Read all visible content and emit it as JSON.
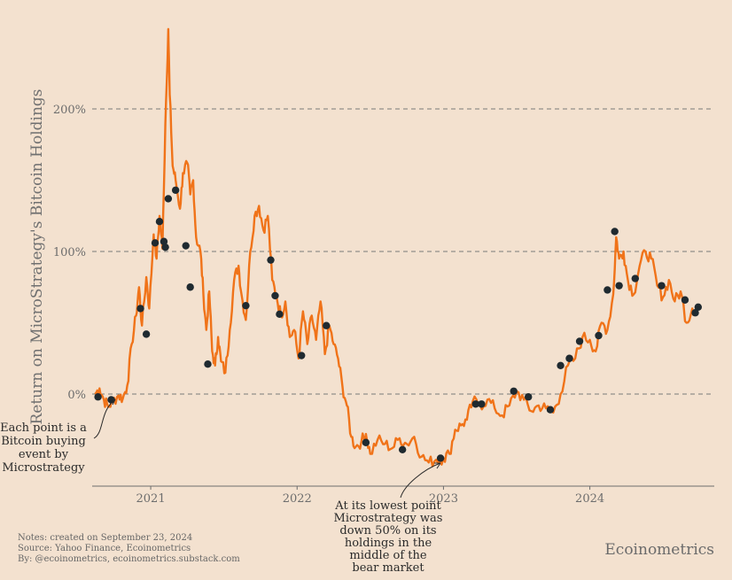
{
  "chart_data": {
    "type": "line",
    "title": "",
    "xlabel": "",
    "ylabel": "Return on MicroStrategy's Bitcoin Holdings",
    "x_ticks": [
      "2021",
      "2022",
      "2023",
      "2024"
    ],
    "y_ticks": [
      "0%",
      "100%",
      "200%"
    ],
    "y_tick_values": [
      0,
      100,
      200
    ],
    "xlim": [
      2020.6,
      2024.85
    ],
    "ylim": [
      -65,
      258
    ],
    "grid": "horizontal dashed at tick values",
    "line_color": "#f07319",
    "marker_color": "#1f2a30",
    "series": [
      {
        "values": [
          [
            2020.62,
            0
          ],
          [
            2020.65,
            4
          ],
          [
            2020.68,
            -4
          ],
          [
            2020.71,
            -9
          ],
          [
            2020.74,
            -5
          ],
          [
            2020.78,
            -1
          ],
          [
            2020.81,
            -3
          ],
          [
            2020.84,
            6
          ],
          [
            2020.87,
            35
          ],
          [
            2020.9,
            55
          ],
          [
            2020.92,
            75
          ],
          [
            2020.94,
            48
          ],
          [
            2020.97,
            82
          ],
          [
            2020.99,
            60
          ],
          [
            2021.02,
            112
          ],
          [
            2021.04,
            95
          ],
          [
            2021.06,
            125
          ],
          [
            2021.08,
            102
          ],
          [
            2021.1,
            190
          ],
          [
            2021.12,
            256
          ],
          [
            2021.13,
            210
          ],
          [
            2021.15,
            160
          ],
          [
            2021.17,
            150
          ],
          [
            2021.2,
            130
          ],
          [
            2021.22,
            155
          ],
          [
            2021.25,
            162
          ],
          [
            2021.27,
            140
          ],
          [
            2021.29,
            150
          ],
          [
            2021.31,
            110
          ],
          [
            2021.34,
            100
          ],
          [
            2021.36,
            70
          ],
          [
            2021.38,
            45
          ],
          [
            2021.4,
            72
          ],
          [
            2021.42,
            30
          ],
          [
            2021.44,
            20
          ],
          [
            2021.46,
            40
          ],
          [
            2021.48,
            23
          ],
          [
            2021.51,
            15
          ],
          [
            2021.54,
            45
          ],
          [
            2021.57,
            80
          ],
          [
            2021.6,
            90
          ],
          [
            2021.62,
            70
          ],
          [
            2021.65,
            52
          ],
          [
            2021.68,
            100
          ],
          [
            2021.71,
            125
          ],
          [
            2021.74,
            132
          ],
          [
            2021.77,
            115
          ],
          [
            2021.8,
            125
          ],
          [
            2021.83,
            80
          ],
          [
            2021.86,
            68
          ],
          [
            2021.89,
            55
          ],
          [
            2021.92,
            65
          ],
          [
            2021.95,
            40
          ],
          [
            2021.98,
            45
          ],
          [
            2022.01,
            25
          ],
          [
            2022.04,
            58
          ],
          [
            2022.07,
            35
          ],
          [
            2022.1,
            55
          ],
          [
            2022.13,
            38
          ],
          [
            2022.16,
            65
          ],
          [
            2022.19,
            28
          ],
          [
            2022.22,
            48
          ],
          [
            2022.25,
            35
          ],
          [
            2022.28,
            25
          ],
          [
            2022.31,
            5
          ],
          [
            2022.34,
            -8
          ],
          [
            2022.37,
            -30
          ],
          [
            2022.4,
            -37
          ],
          [
            2022.44,
            -33
          ],
          [
            2022.47,
            -28
          ],
          [
            2022.5,
            -42
          ],
          [
            2022.55,
            -32
          ],
          [
            2022.6,
            -35
          ],
          [
            2022.65,
            -38
          ],
          [
            2022.7,
            -31
          ],
          [
            2022.75,
            -35
          ],
          [
            2022.8,
            -30
          ],
          [
            2022.85,
            -44
          ],
          [
            2022.9,
            -48
          ],
          [
            2022.95,
            -46
          ],
          [
            2023.0,
            -45
          ],
          [
            2023.04,
            -42
          ],
          [
            2023.08,
            -25
          ],
          [
            2023.12,
            -22
          ],
          [
            2023.16,
            -18
          ],
          [
            2023.2,
            -5
          ],
          [
            2023.25,
            -8
          ],
          [
            2023.3,
            -4
          ],
          [
            2023.35,
            -10
          ],
          [
            2023.4,
            -15
          ],
          [
            2023.45,
            -8
          ],
          [
            2023.5,
            2
          ],
          [
            2023.55,
            -4
          ],
          [
            2023.6,
            -12
          ],
          [
            2023.65,
            -8
          ],
          [
            2023.7,
            -10
          ],
          [
            2023.75,
            -13
          ],
          [
            2023.8,
            0
          ],
          [
            2023.85,
            20
          ],
          [
            2023.9,
            25
          ],
          [
            2023.95,
            40
          ],
          [
            2024.0,
            38
          ],
          [
            2024.04,
            30
          ],
          [
            2024.08,
            50
          ],
          [
            2024.12,
            45
          ],
          [
            2024.16,
            70
          ],
          [
            2024.18,
            110
          ],
          [
            2024.2,
            95
          ],
          [
            2024.23,
            100
          ],
          [
            2024.26,
            80
          ],
          [
            2024.3,
            70
          ],
          [
            2024.34,
            90
          ],
          [
            2024.38,
            100
          ],
          [
            2024.42,
            95
          ],
          [
            2024.46,
            76
          ],
          [
            2024.5,
            68
          ],
          [
            2024.54,
            80
          ],
          [
            2024.58,
            65
          ],
          [
            2024.62,
            72
          ],
          [
            2024.66,
            50
          ],
          [
            2024.7,
            60
          ],
          [
            2024.73,
            58
          ]
        ]
      }
    ],
    "purchase_points": [
      [
        2020.64,
        -2
      ],
      [
        2020.73,
        -4
      ],
      [
        2020.93,
        60
      ],
      [
        2020.97,
        42
      ],
      [
        2021.03,
        106
      ],
      [
        2021.06,
        121
      ],
      [
        2021.09,
        107
      ],
      [
        2021.1,
        103
      ],
      [
        2021.12,
        137
      ],
      [
        2021.17,
        143
      ],
      [
        2021.24,
        104
      ],
      [
        2021.27,
        75
      ],
      [
        2021.39,
        21
      ],
      [
        2021.65,
        62
      ],
      [
        2021.82,
        94
      ],
      [
        2021.85,
        69
      ],
      [
        2021.88,
        56
      ],
      [
        2022.03,
        27
      ],
      [
        2022.2,
        48
      ],
      [
        2022.47,
        -34
      ],
      [
        2022.72,
        -39
      ],
      [
        2022.98,
        -45
      ],
      [
        2023.22,
        -7
      ],
      [
        2023.26,
        -7
      ],
      [
        2023.48,
        2
      ],
      [
        2023.58,
        -2
      ],
      [
        2023.73,
        -11
      ],
      [
        2023.8,
        20
      ],
      [
        2023.86,
        25
      ],
      [
        2023.93,
        37
      ],
      [
        2024.06,
        41
      ],
      [
        2024.12,
        73
      ],
      [
        2024.17,
        114
      ],
      [
        2024.2,
        76
      ],
      [
        2024.31,
        81
      ],
      [
        2024.49,
        76
      ],
      [
        2024.65,
        66
      ],
      [
        2024.72,
        57
      ],
      [
        2024.74,
        61
      ]
    ],
    "annotations": {
      "left": [
        "Each point is a",
        "Bitcoin buying",
        "event by",
        "Microstrategy"
      ],
      "bottom": [
        "At its lowest point",
        "Microstrategy was",
        "down 50% on its",
        "holdings in the",
        "middle of the",
        "bear market"
      ]
    }
  },
  "notes": [
    "Notes: created on September 23, 2024",
    "Source: Yahoo Finance, Ecoinometrics",
    "By: @ecoinometrics, ecoinometrics.substack.com"
  ],
  "brand": "Ecoinometrics"
}
